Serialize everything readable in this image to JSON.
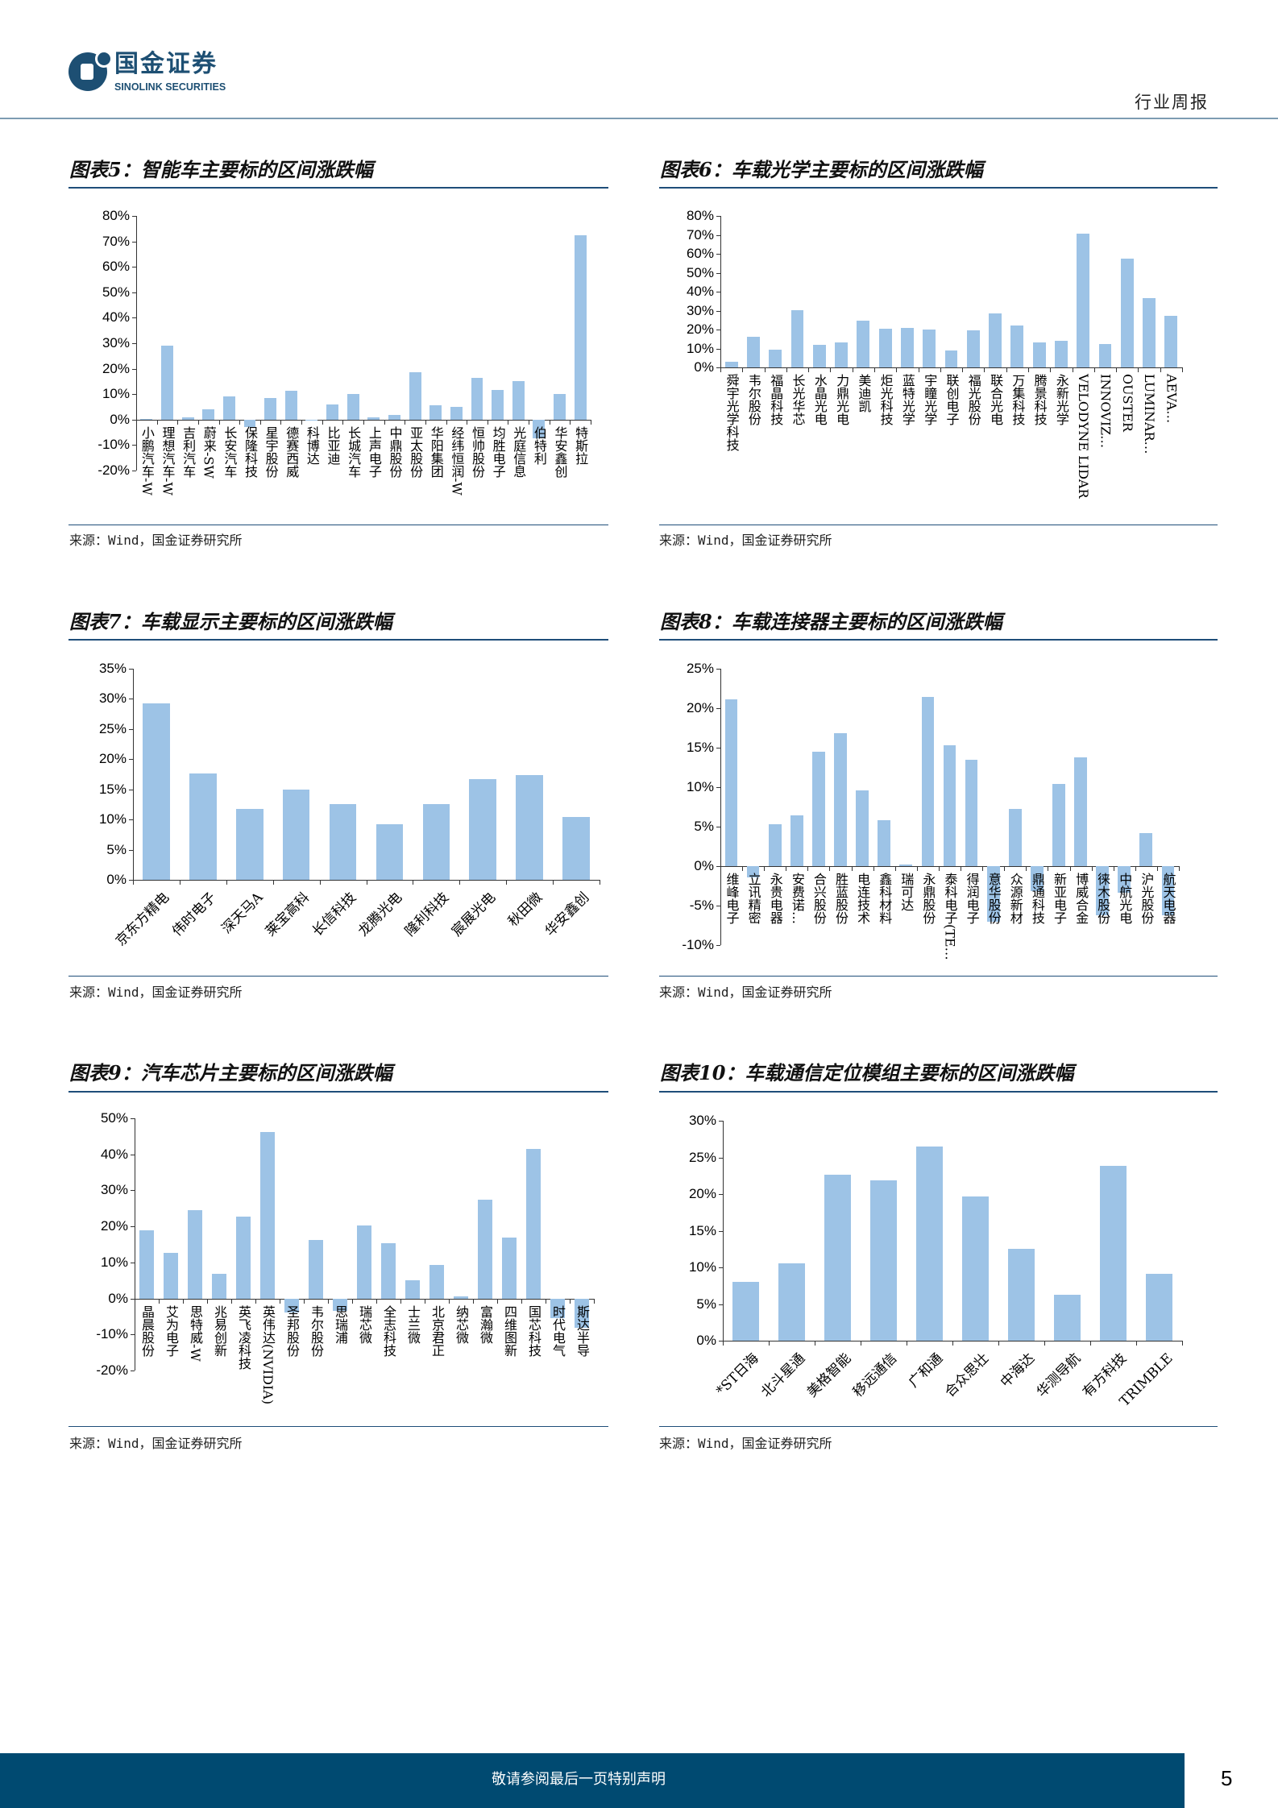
{
  "header": {
    "brand_cn": "国金证券",
    "brand_en": "SINOLINK SECURITIES",
    "report_type": "行业周报"
  },
  "chart_data": [
    {
      "type": "bar",
      "title": "图表5：智能车主要标的区间涨跌幅",
      "source": "来源：Wind，国金证券研究所",
      "xlabel": "",
      "ylabel": "",
      "ylim": [
        -20,
        80
      ],
      "ytick_step": 10,
      "grid": false,
      "categories": [
        "小鹏汽车-W",
        "理想汽车-W",
        "吉利汽车",
        "蔚来-SW",
        "长安汽车",
        "保隆科技",
        "星宇股份",
        "德赛西威",
        "科博达",
        "比亚迪",
        "长城汽车",
        "上声电子",
        "中鼎股份",
        "亚太股份",
        "华阳集团",
        "经纬恒润-W",
        "恒帅股份",
        "均胜电子",
        "光庭信息",
        "伯特利",
        "华安鑫创",
        "特斯拉"
      ],
      "values": [
        0.3,
        29,
        1,
        4,
        9,
        -3,
        8.5,
        11.2,
        0,
        6,
        10,
        0.8,
        1.8,
        18.5,
        5.5,
        5,
        16.5,
        11.6,
        15.2,
        -7.5,
        10.2,
        72.3
      ]
    },
    {
      "type": "bar",
      "title": "图表6：车载光学主要标的区间涨跌幅",
      "source": "来源：Wind，国金证券研究所",
      "xlabel": "",
      "ylabel": "",
      "ylim": [
        0,
        80
      ],
      "ytick_step": 10,
      "grid": false,
      "categories": [
        "舜宇光学科技",
        "韦尔股份",
        "福晶科技",
        "长光华芯",
        "水晶光电",
        "力鼎光电",
        "美迪凯",
        "炬光科技",
        "蓝特光学",
        "宇瞳光学",
        "联创电子",
        "福光股份",
        "联合光电",
        "万集科技",
        "腾景科技",
        "永新光学",
        "VELODYNE LIDAR",
        "INNOVIZ…",
        "OUSTER",
        "LUMINAR…",
        "AEVA…"
      ],
      "values": [
        3,
        16,
        9.5,
        30.2,
        12,
        13.2,
        24.7,
        20.4,
        20.8,
        19.8,
        9,
        19.4,
        28.3,
        22.1,
        13,
        14.2,
        70.5,
        12.2,
        57.6,
        36.5,
        27.3
      ]
    },
    {
      "type": "bar",
      "title": "图表7：车载显示主要标的区间涨跌幅",
      "source": "来源：Wind，国金证券研究所",
      "xlabel": "",
      "ylabel": "",
      "ylim": [
        0,
        35
      ],
      "ytick_step": 5,
      "grid": false,
      "categories": [
        "京东方精电",
        "伟时电子",
        "深天马A",
        "莱宝高科",
        "长信科技",
        "龙腾光电",
        "隆利科技",
        "宸展光电",
        "秋田微",
        "华安鑫创"
      ],
      "values": [
        29.2,
        17.7,
        11.8,
        15,
        12.6,
        9.2,
        12.5,
        16.7,
        17.3,
        10.4
      ]
    },
    {
      "type": "bar",
      "title": "图表8：车载连接器主要标的区间涨跌幅",
      "source": "来源：Wind，国金证券研究所",
      "xlabel": "",
      "ylabel": "",
      "ylim": [
        -10,
        25
      ],
      "ytick_step": 5,
      "grid": false,
      "categories": [
        "维峰电子",
        "立讯精密",
        "永贵电器",
        "安费诺…",
        "合兴股份",
        "胜蓝股份",
        "电连技术",
        "鑫科材料",
        "瑞可达",
        "永鼎股份",
        "泰科电子(TE…",
        "得润电子",
        "意华股份",
        "众源新材",
        "鼎通科技",
        "新亚电子",
        "博威合金",
        "徕木股份",
        "中航光电",
        "沪光股份",
        "航天电器"
      ],
      "values": [
        21.1,
        -1.4,
        5.3,
        6.4,
        14.5,
        16.8,
        9.6,
        5.8,
        0.2,
        21.4,
        15.3,
        13.5,
        -7,
        7.2,
        -3.2,
        10.4,
        13.8,
        -6.2,
        -3.4,
        4.2,
        -6.2
      ]
    },
    {
      "type": "bar",
      "title": "图表9：汽车芯片主要标的区间涨跌幅",
      "source": "来源：Wind，国金证券研究所",
      "xlabel": "",
      "ylabel": "",
      "ylim": [
        -20,
        50
      ],
      "ytick_step": 10,
      "grid": false,
      "categories": [
        "晶晨股份",
        "艾为电子",
        "思特威-W",
        "兆易创新",
        "英飞凌科技",
        "英伟达(NVIDIA)",
        "圣邦股份",
        "韦尔股份",
        "思瑞浦",
        "瑞芯微",
        "全志科技",
        "士兰微",
        "北京君正",
        "纳芯微",
        "富瀚微",
        "四维图新",
        "国芯科技",
        "时代电气",
        "斯达半导"
      ],
      "values": [
        19,
        12.7,
        24.4,
        6.9,
        22.8,
        46.2,
        -4,
        16.2,
        -3.5,
        20.3,
        15.4,
        5.1,
        9.3,
        0.5,
        27.5,
        16.9,
        41.4,
        -5.5,
        -8.2
      ]
    },
    {
      "type": "bar",
      "title": "图表10：车载通信定位模组主要标的区间涨跌幅",
      "source": "来源：Wind，国金证券研究所",
      "xlabel": "",
      "ylabel": "",
      "ylim": [
        0,
        30
      ],
      "ytick_step": 5,
      "grid": false,
      "categories": [
        "*ST日海",
        "北斗星通",
        "美格智能",
        "移远通信",
        "广和通",
        "合众思壮",
        "中海达",
        "华测导航",
        "有方科技",
        "TRIMBLE"
      ],
      "values": [
        8,
        10.5,
        22.6,
        21.9,
        26.5,
        19.7,
        12.5,
        6.3,
        23.8,
        9.1
      ]
    }
  ],
  "footer": {
    "disclaimer": "敬请参阅最后一页特别声明",
    "page": "5"
  }
}
